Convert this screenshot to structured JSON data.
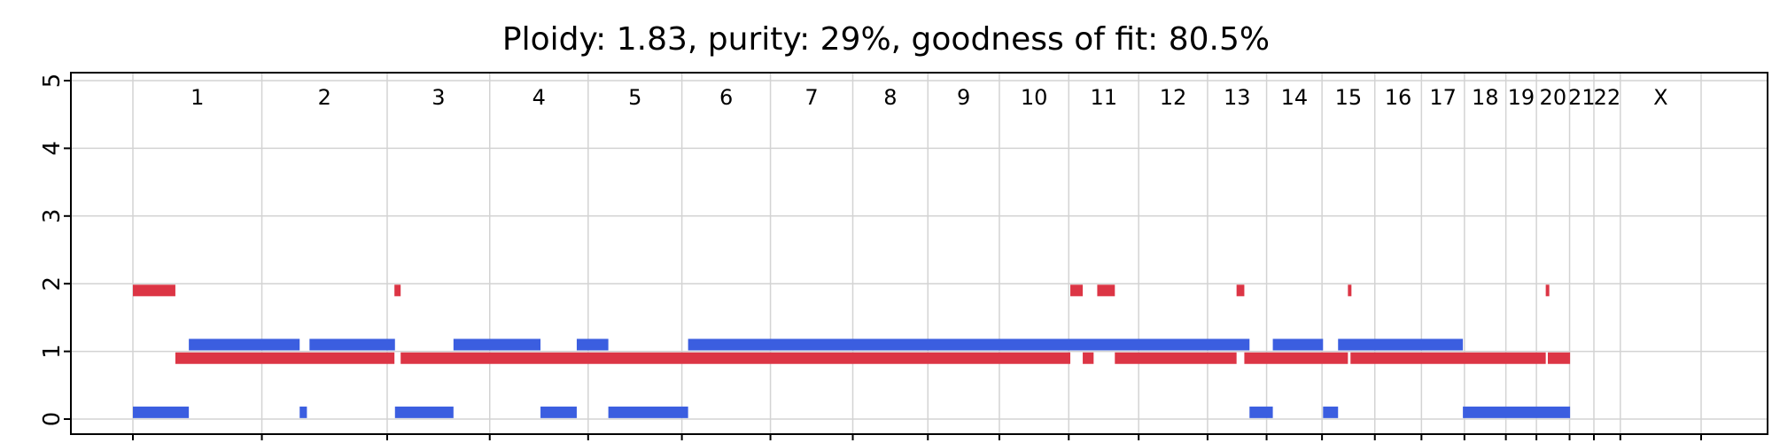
{
  "chart_data": {
    "type": "segment",
    "title": "Ploidy: 1.83, purity: 29%, goodness of fit: 80.5%",
    "xlabel": "",
    "ylabel": "",
    "ylim": [
      0,
      5
    ],
    "yticks": [
      "0",
      "1",
      "2",
      "3",
      "4",
      "5"
    ],
    "grid": true,
    "colors": {
      "major": "#dc3545",
      "minor": "#3b5ee0",
      "grid": "#d3d3d3",
      "axis": "#000000"
    },
    "chromosomes": [
      {
        "name": "1",
        "length": 249
      },
      {
        "name": "2",
        "length": 242
      },
      {
        "name": "3",
        "length": 198
      },
      {
        "name": "4",
        "length": 190
      },
      {
        "name": "5",
        "length": 181
      },
      {
        "name": "6",
        "length": 171
      },
      {
        "name": "7",
        "length": 159
      },
      {
        "name": "8",
        "length": 145
      },
      {
        "name": "9",
        "length": 138
      },
      {
        "name": "10",
        "length": 134
      },
      {
        "name": "11",
        "length": 135
      },
      {
        "name": "12",
        "length": 133
      },
      {
        "name": "13",
        "length": 114
      },
      {
        "name": "14",
        "length": 107
      },
      {
        "name": "15",
        "length": 102
      },
      {
        "name": "16",
        "length": 90
      },
      {
        "name": "17",
        "length": 83
      },
      {
        "name": "18",
        "length": 80
      },
      {
        "name": "19",
        "length": 59
      },
      {
        "name": "20",
        "length": 64
      },
      {
        "name": "21",
        "length": 47
      },
      {
        "name": "22",
        "length": 51
      },
      {
        "name": "X",
        "length": 156
      }
    ],
    "series": [
      {
        "role": "major",
        "segments": [
          [
            0,
            82,
            1.9
          ],
          [
            82,
            505,
            0.9
          ],
          [
            505,
            517,
            1.9
          ],
          [
            517,
            1810,
            0.9
          ],
          [
            1810,
            1834,
            1.9
          ],
          [
            1834,
            1855,
            0.9
          ],
          [
            1862,
            1896,
            1.9
          ],
          [
            1896,
            2131,
            0.9
          ],
          [
            2131,
            2146,
            1.9
          ],
          [
            2146,
            2346,
            0.9
          ],
          [
            2346,
            2351,
            1.9
          ],
          [
            2351,
            2728,
            0.9
          ],
          [
            2728,
            2732,
            1.9
          ],
          [
            2732,
            2775,
            0.9
          ]
        ]
      },
      {
        "role": "minor",
        "segments": [
          [
            0,
            108,
            0.1
          ],
          [
            108,
            322,
            1.1
          ],
          [
            322,
            336,
            0.1
          ],
          [
            341,
            506,
            1.1
          ],
          [
            506,
            619,
            0.1
          ],
          [
            619,
            787,
            1.1
          ],
          [
            787,
            857,
            0.1
          ],
          [
            857,
            918,
            1.1
          ],
          [
            918,
            1072,
            0.1
          ],
          [
            1072,
            2156,
            1.1
          ],
          [
            2156,
            2201,
            0.1
          ],
          [
            2201,
            2298,
            1.1
          ],
          [
            2298,
            2327,
            0.1
          ],
          [
            2327,
            2568,
            1.1
          ],
          [
            2568,
            2775,
            0.1
          ]
        ]
      }
    ]
  }
}
